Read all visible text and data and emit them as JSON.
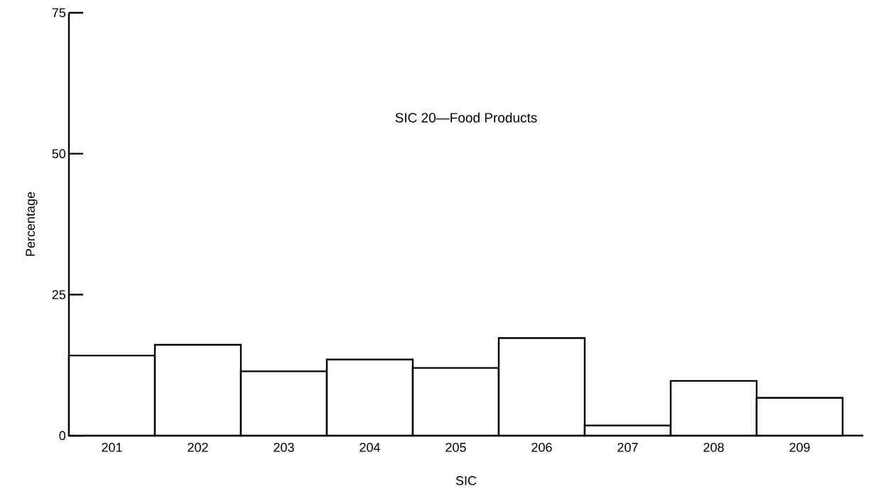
{
  "chart_data": {
    "type": "bar",
    "title": "SIC 20—Food Products",
    "xlabel": "SIC",
    "ylabel": "Percentage",
    "categories": [
      "201",
      "202",
      "203",
      "204",
      "205",
      "206",
      "207",
      "208",
      "209"
    ],
    "values": [
      14.2,
      16.1,
      11.4,
      13.5,
      12.0,
      17.3,
      1.8,
      9.7,
      6.7
    ],
    "color": "#000000",
    "ylim": [
      0,
      75
    ],
    "yticks": [
      0,
      25,
      50,
      75
    ],
    "grid": false
  }
}
